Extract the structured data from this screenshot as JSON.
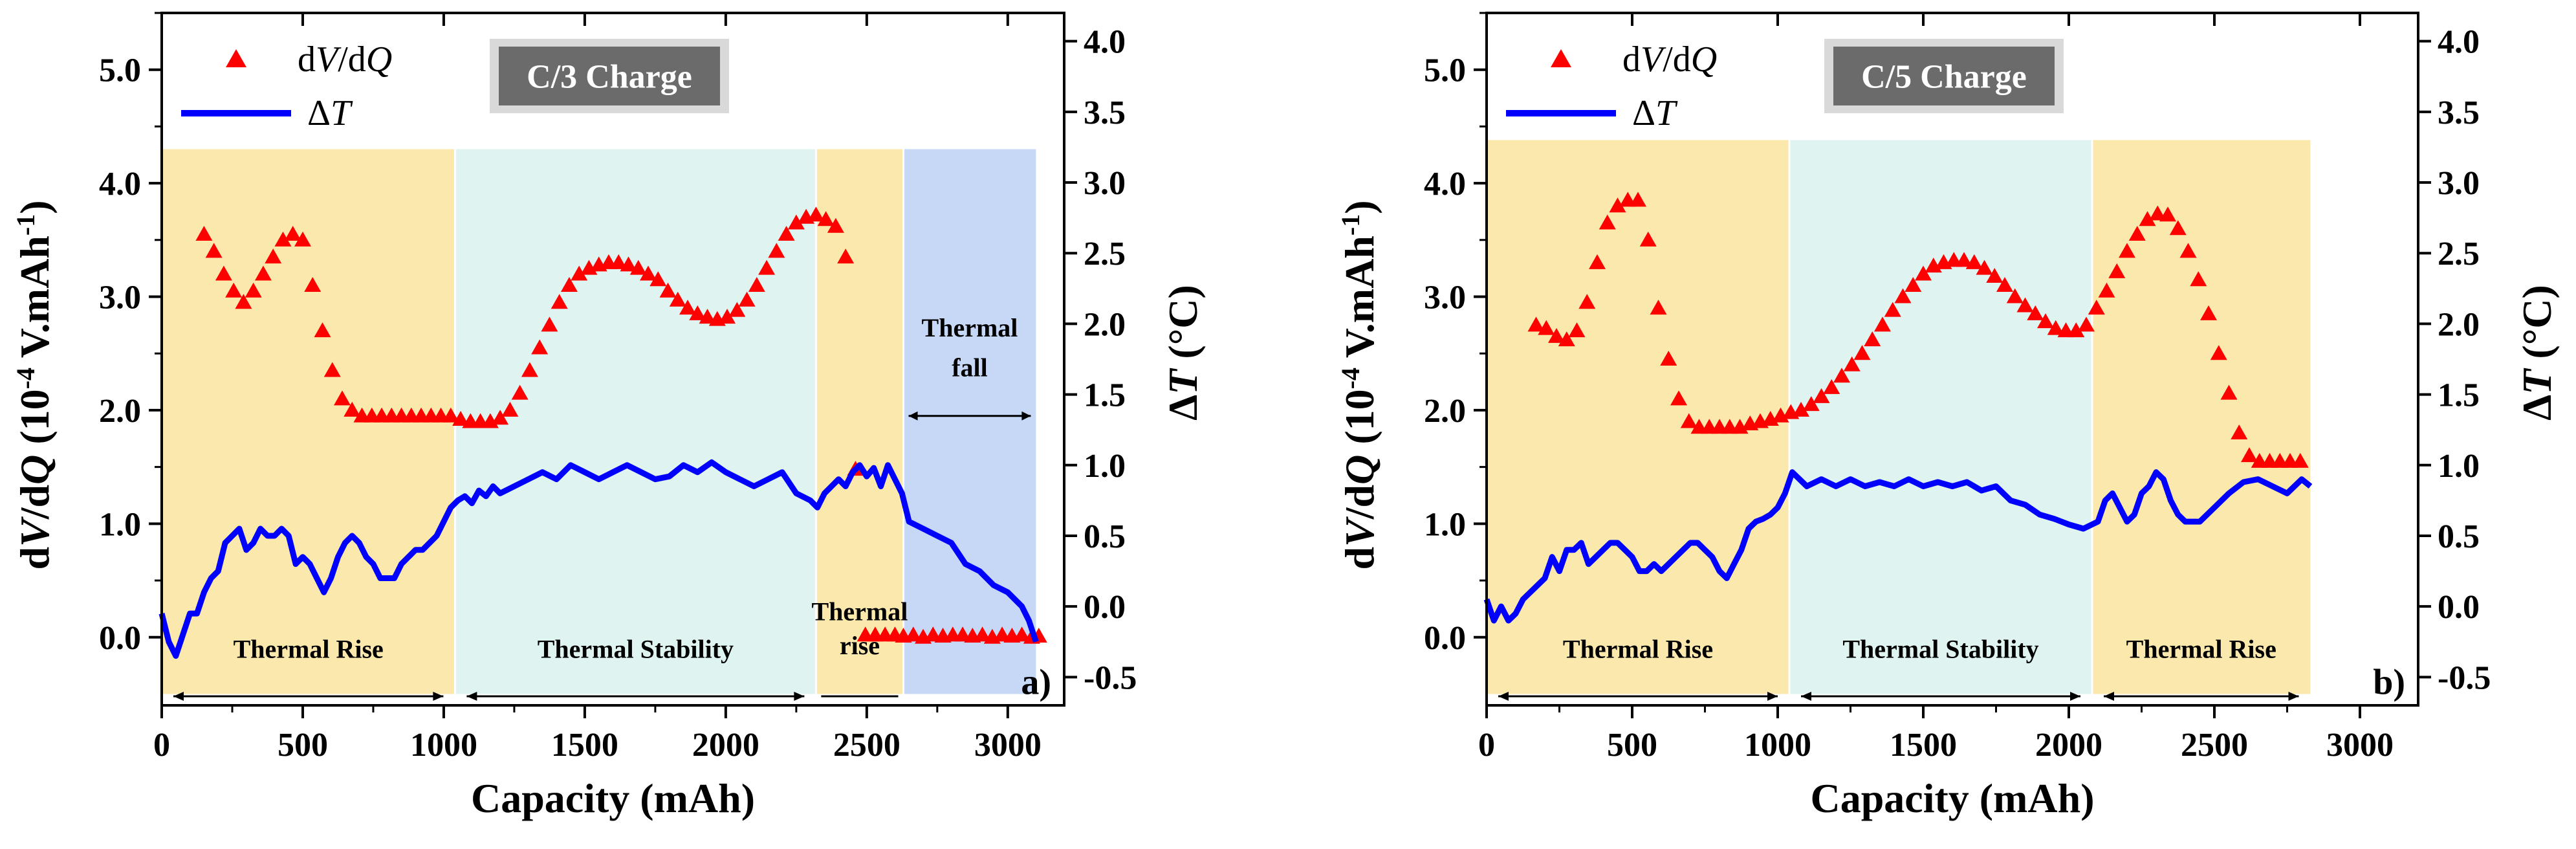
{
  "chart_data": [
    {
      "type": "scatter+line",
      "panel_label": "a)",
      "badge": "C/3 Charge",
      "xlabel": "Capacity (mAh)",
      "ylabel_left": "dV/dQ (10^-4 V.mAh^-1)",
      "ylabel_right": "ΔT (°C)",
      "xlim": [
        0,
        3200
      ],
      "ylim_left": [
        -0.6,
        5.5
      ],
      "ylim_right": [
        -0.7,
        4.2
      ],
      "x_ticks": [
        "0",
        "500",
        "1000",
        "1500",
        "2000",
        "2500",
        "3000"
      ],
      "y_left_ticks": [
        "0.0",
        "1.0",
        "2.0",
        "3.0",
        "4.0",
        "5.0"
      ],
      "y_right_ticks": [
        "-0.5",
        "0.0",
        "0.5",
        "1.0",
        "1.5",
        "2.0",
        "2.5",
        "3.0",
        "3.5",
        "4.0"
      ],
      "legend": [
        "dV/dQ",
        "ΔT"
      ],
      "regions": [
        {
          "x0": 0,
          "x1": 1040,
          "color": "#fbe8ad",
          "label": "Thermal Rise"
        },
        {
          "x0": 1040,
          "x1": 2320,
          "color": "#dff4f1",
          "label": "Thermal Stability"
        },
        {
          "x0": 2320,
          "x1": 2630,
          "color": "#fbe8ad",
          "label": "Thermal rise"
        },
        {
          "x0": 2630,
          "x1": 3100,
          "color": "#c7d8f7",
          "label": "Thermal fall"
        }
      ],
      "dvdq": {
        "x": [
          150,
          185,
          220,
          255,
          290,
          325,
          360,
          395,
          430,
          465,
          500,
          535,
          570,
          605,
          640,
          675,
          710,
          745,
          780,
          815,
          850,
          885,
          920,
          955,
          990,
          1025,
          1060,
          1095,
          1130,
          1165,
          1200,
          1235,
          1270,
          1305,
          1340,
          1375,
          1410,
          1445,
          1480,
          1515,
          1550,
          1585,
          1620,
          1655,
          1690,
          1725,
          1760,
          1795,
          1830,
          1865,
          1900,
          1935,
          1970,
          2005,
          2040,
          2075,
          2110,
          2145,
          2180,
          2215,
          2250,
          2285,
          2320,
          2355,
          2390,
          2425,
          2460,
          2495,
          2530,
          2565,
          2600,
          2630,
          2665,
          2700,
          2735,
          2770,
          2805,
          2840,
          2875,
          2910,
          2945,
          2980,
          3015,
          3050,
          3085,
          3110
        ],
        "y": [
          3.55,
          3.4,
          3.2,
          3.05,
          2.95,
          3.05,
          3.2,
          3.35,
          3.5,
          3.55,
          3.5,
          3.1,
          2.7,
          2.35,
          2.1,
          2.0,
          1.95,
          1.95,
          1.95,
          1.95,
          1.95,
          1.95,
          1.95,
          1.95,
          1.95,
          1.95,
          1.92,
          1.9,
          1.9,
          1.9,
          1.93,
          2.0,
          2.15,
          2.35,
          2.55,
          2.75,
          2.95,
          3.1,
          3.2,
          3.25,
          3.28,
          3.3,
          3.3,
          3.28,
          3.25,
          3.2,
          3.15,
          3.05,
          2.97,
          2.9,
          2.85,
          2.82,
          2.8,
          2.82,
          2.88,
          2.97,
          3.1,
          3.25,
          3.4,
          3.55,
          3.65,
          3.7,
          3.72,
          3.68,
          3.62,
          3.35,
          1.48,
          0.02,
          0.02,
          0.02,
          0.02,
          0.01,
          0.02,
          0.0,
          0.02,
          0.01,
          0.02,
          0.02,
          0.01,
          0.02,
          0.0,
          0.02,
          0.01,
          0.02,
          0.0,
          0.01
        ]
      },
      "dT": {
        "x": [
          0,
          25,
          50,
          75,
          100,
          125,
          150,
          175,
          200,
          225,
          250,
          275,
          300,
          325,
          350,
          375,
          400,
          425,
          450,
          475,
          500,
          525,
          550,
          575,
          600,
          625,
          650,
          675,
          700,
          725,
          750,
          775,
          800,
          825,
          850,
          875,
          900,
          925,
          950,
          975,
          1000,
          1025,
          1050,
          1075,
          1100,
          1125,
          1150,
          1175,
          1200,
          1250,
          1300,
          1350,
          1400,
          1450,
          1500,
          1550,
          1600,
          1650,
          1700,
          1750,
          1800,
          1850,
          1900,
          1950,
          2000,
          2050,
          2100,
          2150,
          2200,
          2250,
          2300,
          2325,
          2350,
          2375,
          2400,
          2425,
          2450,
          2475,
          2500,
          2525,
          2550,
          2575,
          2600,
          2625,
          2650,
          2700,
          2750,
          2800,
          2850,
          2900,
          2950,
          3000,
          3050,
          3075,
          3100
        ],
        "y": [
          -0.05,
          -0.25,
          -0.35,
          -0.2,
          -0.05,
          -0.05,
          0.1,
          0.2,
          0.25,
          0.45,
          0.5,
          0.55,
          0.4,
          0.45,
          0.55,
          0.5,
          0.5,
          0.55,
          0.5,
          0.3,
          0.35,
          0.3,
          0.2,
          0.1,
          0.2,
          0.35,
          0.45,
          0.5,
          0.45,
          0.35,
          0.3,
          0.2,
          0.2,
          0.2,
          0.3,
          0.35,
          0.4,
          0.4,
          0.45,
          0.5,
          0.6,
          0.7,
          0.75,
          0.78,
          0.73,
          0.82,
          0.78,
          0.85,
          0.8,
          0.85,
          0.9,
          0.95,
          0.9,
          1.0,
          0.95,
          0.9,
          0.95,
          1.0,
          0.95,
          0.9,
          0.92,
          1.0,
          0.95,
          1.02,
          0.95,
          0.9,
          0.85,
          0.9,
          0.95,
          0.8,
          0.75,
          0.7,
          0.8,
          0.85,
          0.9,
          0.85,
          0.95,
          1.0,
          0.92,
          0.98,
          0.85,
          1.0,
          0.9,
          0.8,
          0.6,
          0.55,
          0.5,
          0.45,
          0.3,
          0.25,
          0.15,
          0.1,
          0.0,
          -0.1,
          -0.25
        ]
      }
    },
    {
      "type": "scatter+line",
      "panel_label": "b)",
      "badge": "C/5 Charge",
      "xlabel": "Capacity (mAh)",
      "ylabel_left": "dV/dQ (10^-4 V.mAh^-1)",
      "ylabel_right": "ΔT (°C)",
      "xlim": [
        0,
        3200
      ],
      "ylim_left": [
        -0.6,
        5.5
      ],
      "ylim_right": [
        -0.7,
        4.2
      ],
      "x_ticks": [
        "0",
        "500",
        "1000",
        "1500",
        "2000",
        "2500",
        "3000"
      ],
      "y_left_ticks": [
        "0.0",
        "1.0",
        "2.0",
        "3.0",
        "4.0",
        "5.0"
      ],
      "y_right_ticks": [
        "-0.5",
        "0.0",
        "0.5",
        "1.0",
        "1.5",
        "2.0",
        "2.5",
        "3.0",
        "3.5",
        "4.0"
      ],
      "legend": [
        "dV/dQ",
        "ΔT"
      ],
      "regions": [
        {
          "x0": 0,
          "x1": 1040,
          "color": "#fbe8ad",
          "label": "Thermal Rise"
        },
        {
          "x0": 1040,
          "x1": 2080,
          "color": "#dff4f1",
          "label": "Thermal Stability"
        },
        {
          "x0": 2080,
          "x1": 2830,
          "color": "#fbe8ad",
          "label": "Thermal Rise"
        }
      ],
      "dvdq": {
        "x": [
          170,
          205,
          240,
          275,
          310,
          345,
          380,
          415,
          450,
          485,
          520,
          555,
          590,
          625,
          660,
          695,
          730,
          765,
          800,
          835,
          870,
          905,
          940,
          975,
          1010,
          1045,
          1080,
          1115,
          1150,
          1185,
          1220,
          1255,
          1290,
          1325,
          1360,
          1395,
          1430,
          1465,
          1500,
          1535,
          1570,
          1605,
          1640,
          1675,
          1710,
          1745,
          1780,
          1815,
          1850,
          1885,
          1920,
          1955,
          1990,
          2025,
          2060,
          2095,
          2130,
          2165,
          2200,
          2235,
          2270,
          2305,
          2340,
          2375,
          2410,
          2445,
          2480,
          2515,
          2550,
          2585,
          2620,
          2655,
          2690,
          2725,
          2760,
          2795
        ],
        "y": [
          2.75,
          2.72,
          2.65,
          2.62,
          2.7,
          2.95,
          3.3,
          3.65,
          3.8,
          3.85,
          3.85,
          3.5,
          2.9,
          2.45,
          2.1,
          1.9,
          1.85,
          1.85,
          1.85,
          1.85,
          1.85,
          1.88,
          1.9,
          1.92,
          1.95,
          1.98,
          2.0,
          2.05,
          2.12,
          2.2,
          2.3,
          2.4,
          2.5,
          2.62,
          2.75,
          2.88,
          3.0,
          3.1,
          3.2,
          3.27,
          3.3,
          3.32,
          3.32,
          3.3,
          3.25,
          3.18,
          3.1,
          3.0,
          2.92,
          2.85,
          2.78,
          2.72,
          2.7,
          2.7,
          2.75,
          2.9,
          3.05,
          3.22,
          3.4,
          3.55,
          3.68,
          3.73,
          3.72,
          3.6,
          3.4,
          3.15,
          2.85,
          2.5,
          2.15,
          1.8,
          1.6,
          1.55,
          1.55,
          1.55,
          1.55,
          1.55
        ]
      },
      "dT": {
        "x": [
          0,
          25,
          50,
          75,
          100,
          125,
          150,
          175,
          200,
          225,
          250,
          275,
          300,
          325,
          350,
          375,
          400,
          425,
          450,
          475,
          500,
          525,
          550,
          575,
          600,
          625,
          650,
          675,
          700,
          725,
          750,
          775,
          800,
          825,
          850,
          875,
          900,
          925,
          950,
          975,
          1000,
          1025,
          1050,
          1100,
          1150,
          1200,
          1250,
          1300,
          1350,
          1400,
          1450,
          1500,
          1550,
          1600,
          1650,
          1700,
          1750,
          1800,
          1850,
          1900,
          1950,
          2000,
          2050,
          2100,
          2125,
          2150,
          2175,
          2200,
          2225,
          2250,
          2275,
          2300,
          2325,
          2350,
          2375,
          2400,
          2450,
          2500,
          2550,
          2600,
          2650,
          2700,
          2750,
          2800,
          2830
        ],
        "y": [
          0.05,
          -0.1,
          0.0,
          -0.1,
          -0.05,
          0.05,
          0.1,
          0.15,
          0.2,
          0.35,
          0.25,
          0.4,
          0.4,
          0.45,
          0.3,
          0.35,
          0.4,
          0.45,
          0.45,
          0.4,
          0.35,
          0.25,
          0.25,
          0.3,
          0.25,
          0.3,
          0.35,
          0.4,
          0.45,
          0.45,
          0.4,
          0.35,
          0.25,
          0.2,
          0.3,
          0.4,
          0.55,
          0.6,
          0.62,
          0.65,
          0.7,
          0.8,
          0.95,
          0.85,
          0.9,
          0.85,
          0.9,
          0.85,
          0.88,
          0.85,
          0.9,
          0.85,
          0.88,
          0.85,
          0.88,
          0.82,
          0.85,
          0.75,
          0.72,
          0.65,
          0.62,
          0.58,
          0.55,
          0.6,
          0.75,
          0.8,
          0.7,
          0.6,
          0.65,
          0.8,
          0.85,
          0.95,
          0.9,
          0.75,
          0.65,
          0.6,
          0.6,
          0.7,
          0.8,
          0.88,
          0.9,
          0.85,
          0.8,
          0.9,
          0.85
        ]
      }
    }
  ]
}
